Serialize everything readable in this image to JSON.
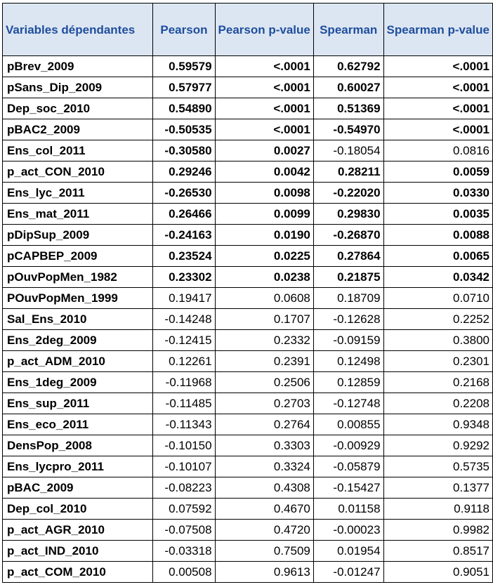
{
  "headers": {
    "variable": "Variables dépendantes",
    "pearson": "Pearson",
    "pearson_p": "Pearson p-value",
    "spearman": "Spearman",
    "spearman_p": "Spearman p-value"
  },
  "rows": [
    {
      "variable": "pBrev_2009",
      "pearson": "0.59579",
      "pearson_p": "<.0001",
      "spearman": "0.62792",
      "spearman_p": "<.0001",
      "bold": [
        true,
        true,
        true,
        true
      ]
    },
    {
      "variable": "pSans_Dip_2009",
      "pearson": "0.57977",
      "pearson_p": "<.0001",
      "spearman": "0.60027",
      "spearman_p": "<.0001",
      "bold": [
        true,
        true,
        true,
        true
      ]
    },
    {
      "variable": "Dep_soc_2010",
      "pearson": "0.54890",
      "pearson_p": "<.0001",
      "spearman": "0.51369",
      "spearman_p": "<.0001",
      "bold": [
        true,
        true,
        true,
        true
      ]
    },
    {
      "variable": "pBAC2_2009",
      "pearson": "-0.50535",
      "pearson_p": "<.0001",
      "spearman": "-0.54970",
      "spearman_p": "<.0001",
      "bold": [
        true,
        true,
        true,
        true
      ]
    },
    {
      "variable": "Ens_col_2011",
      "pearson": "-0.30580",
      "pearson_p": "0.0027",
      "spearman": "-0.18054",
      "spearman_p": "0.0816",
      "bold": [
        true,
        true,
        false,
        false
      ]
    },
    {
      "variable": "p_act_CON_2010",
      "pearson": "0.29246",
      "pearson_p": "0.0042",
      "spearman": "0.28211",
      "spearman_p": "0.0059",
      "bold": [
        true,
        true,
        true,
        true
      ]
    },
    {
      "variable": "Ens_lyc_2011",
      "pearson": "-0.26530",
      "pearson_p": "0.0098",
      "spearman": "-0.22020",
      "spearman_p": "0.0330",
      "bold": [
        true,
        true,
        true,
        true
      ]
    },
    {
      "variable": "Ens_mat_2011",
      "pearson": "0.26466",
      "pearson_p": "0.0099",
      "spearman": "0.29830",
      "spearman_p": "0.0035",
      "bold": [
        true,
        true,
        true,
        true
      ]
    },
    {
      "variable": "pDipSup_2009",
      "pearson": "-0.24163",
      "pearson_p": "0.0190",
      "spearman": "-0.26870",
      "spearman_p": "0.0088",
      "bold": [
        true,
        true,
        true,
        true
      ]
    },
    {
      "variable": "pCAPBEP_2009",
      "pearson": "0.23524",
      "pearson_p": "0.0225",
      "spearman": "0.27864",
      "spearman_p": "0.0065",
      "bold": [
        true,
        true,
        true,
        true
      ]
    },
    {
      "variable": "pOuvPopMen_1982",
      "pearson": "0.23302",
      "pearson_p": "0.0238",
      "spearman": "0.21875",
      "spearman_p": "0.0342",
      "bold": [
        true,
        true,
        true,
        true
      ]
    },
    {
      "variable": "POuvPopMen_1999",
      "pearson": "0.19417",
      "pearson_p": "0.0608",
      "spearman": "0.18709",
      "spearman_p": "0.0710",
      "bold": [
        false,
        false,
        false,
        false
      ]
    },
    {
      "variable": "Sal_Ens_2010",
      "pearson": "-0.14248",
      "pearson_p": "0.1707",
      "spearman": "-0.12628",
      "spearman_p": "0.2252",
      "bold": [
        false,
        false,
        false,
        false
      ]
    },
    {
      "variable": "Ens_2deg_2009",
      "pearson": "-0.12415",
      "pearson_p": "0.2332",
      "spearman": "-0.09159",
      "spearman_p": "0.3800",
      "bold": [
        false,
        false,
        false,
        false
      ]
    },
    {
      "variable": "p_act_ADM_2010",
      "pearson": "0.12261",
      "pearson_p": "0.2391",
      "spearman": "0.12498",
      "spearman_p": "0.2301",
      "bold": [
        false,
        false,
        false,
        false
      ]
    },
    {
      "variable": "Ens_1deg_2009",
      "pearson": "-0.11968",
      "pearson_p": "0.2506",
      "spearman": "0.12859",
      "spearman_p": "0.2168",
      "bold": [
        false,
        false,
        false,
        false
      ]
    },
    {
      "variable": "Ens_sup_2011",
      "pearson": "-0.11485",
      "pearson_p": "0.2703",
      "spearman": "-0.12748",
      "spearman_p": "0.2208",
      "bold": [
        false,
        false,
        false,
        false
      ]
    },
    {
      "variable": "Ens_eco_2011",
      "pearson": "-0.11343",
      "pearson_p": "0.2764",
      "spearman": "0.00855",
      "spearman_p": "0.9348",
      "bold": [
        false,
        false,
        false,
        false
      ]
    },
    {
      "variable": "DensPop_2008",
      "pearson": "-0.10150",
      "pearson_p": "0.3303",
      "spearman": "-0.00929",
      "spearman_p": "0.9292",
      "bold": [
        false,
        false,
        false,
        false
      ]
    },
    {
      "variable": "Ens_lycpro_2011",
      "pearson": "-0.10107",
      "pearson_p": "0.3324",
      "spearman": "-0.05879",
      "spearman_p": "0.5735",
      "bold": [
        false,
        false,
        false,
        false
      ]
    },
    {
      "variable": "pBAC_2009",
      "pearson": "-0.08223",
      "pearson_p": "0.4308",
      "spearman": "-0.15427",
      "spearman_p": "0.1377",
      "bold": [
        false,
        false,
        false,
        false
      ]
    },
    {
      "variable": "Dep_col_2010",
      "pearson": "0.07592",
      "pearson_p": "0.4670",
      "spearman": "0.01158",
      "spearman_p": "0.9118",
      "bold": [
        false,
        false,
        false,
        false
      ]
    },
    {
      "variable": "p_act_AGR_2010",
      "pearson": "-0.07508",
      "pearson_p": "0.4720",
      "spearman": "-0.00023",
      "spearman_p": "0.9982",
      "bold": [
        false,
        false,
        false,
        false
      ]
    },
    {
      "variable": "p_act_IND_2010",
      "pearson": "-0.03318",
      "pearson_p": "0.7509",
      "spearman": "0.01954",
      "spearman_p": "0.8517",
      "bold": [
        false,
        false,
        false,
        false
      ]
    },
    {
      "variable": "p_act_COM_2010",
      "pearson": "0.00508",
      "pearson_p": "0.9613",
      "spearman": "-0.01247",
      "spearman_p": "0.9051",
      "bold": [
        false,
        false,
        false,
        false
      ]
    }
  ],
  "colors": {
    "header_background": "#dce6f2",
    "header_text": "#1f4e9d",
    "border": "#000000"
  }
}
